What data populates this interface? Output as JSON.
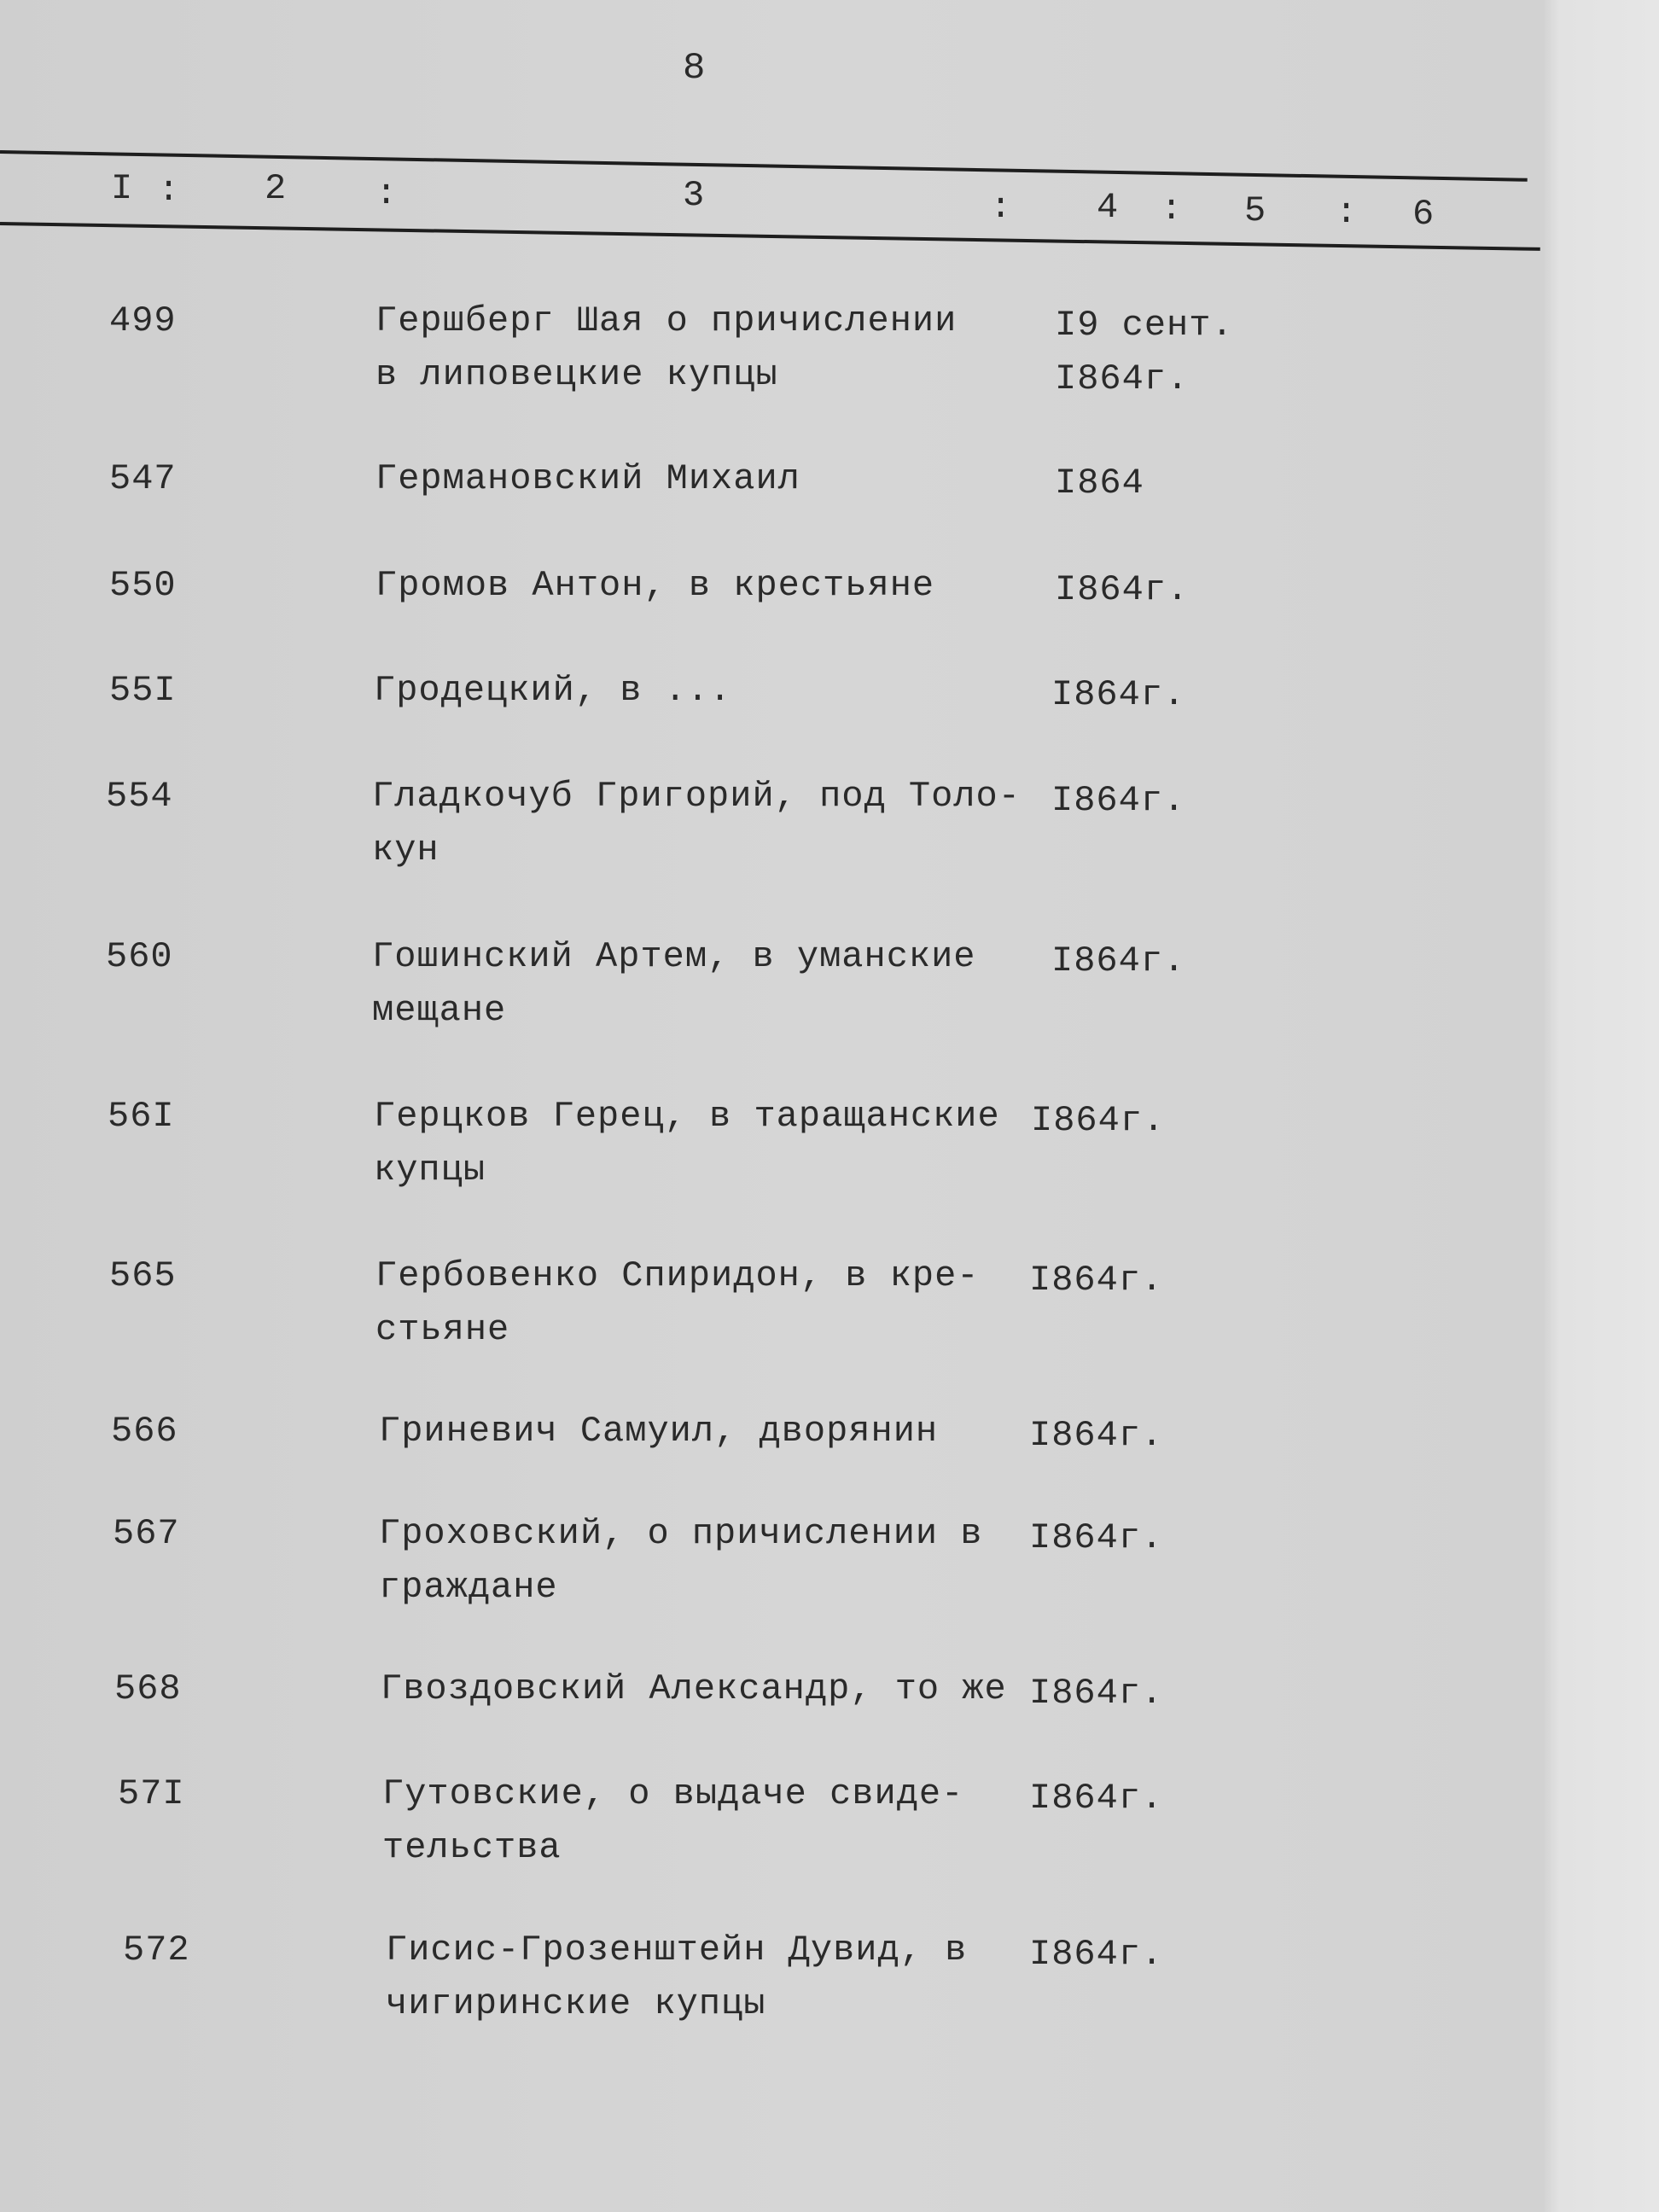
{
  "page_number": "8",
  "header_columns": [
    "I",
    "2",
    "3",
    "4",
    "5",
    "6"
  ],
  "entries": [
    {
      "number": "499",
      "lines": [
        "Гершберг Шая о причислении",
        "в липовецкие купцы"
      ],
      "date": [
        "I9 сент.",
        "I864г."
      ]
    },
    {
      "number": "547",
      "lines": [
        "Германовский Михаил"
      ],
      "date": [
        "I864"
      ]
    },
    {
      "number": "550",
      "lines": [
        "Громов Антон, в крестьяне"
      ],
      "date": [
        "I864г."
      ]
    },
    {
      "number": "55I",
      "lines": [
        "Гродецкий, в ..."
      ],
      "date": [
        "I864г."
      ]
    },
    {
      "number": "554",
      "lines": [
        "Гладкочуб Григорий, под Толо-",
        "кун"
      ],
      "date": [
        "I864г."
      ]
    },
    {
      "number": "560",
      "lines": [
        "Гошинский Артем, в уманские",
        "мещане"
      ],
      "date": [
        "I864г."
      ]
    },
    {
      "number": "56I",
      "lines": [
        "Герцков Герец, в таращанские",
        "купцы"
      ],
      "date": [
        "I864г."
      ]
    },
    {
      "number": "565",
      "lines": [
        "Гербовенко Спиридон, в кре-",
        "стьяне"
      ],
      "date": [
        "I864г."
      ]
    },
    {
      "number": "566",
      "lines": [
        "Гриневич Самуил, дворянин"
      ],
      "date": [
        "I864г."
      ]
    },
    {
      "number": "567",
      "lines": [
        "Гроховский, о причислении в",
        "граждане"
      ],
      "date": [
        "I864г."
      ]
    },
    {
      "number": "568",
      "lines": [
        "Гвоздовский Александр, то же"
      ],
      "date": [
        "I864г."
      ]
    },
    {
      "number": "57I",
      "lines": [
        "Гутовские, о выдаче свиде-",
        "тельства"
      ],
      "date": [
        "I864г."
      ]
    },
    {
      "number": "572",
      "lines": [
        "Гисис-Грозенштейн Дувид, в",
        "чигиринские купцы"
      ],
      "date": [
        "I864г."
      ]
    }
  ]
}
